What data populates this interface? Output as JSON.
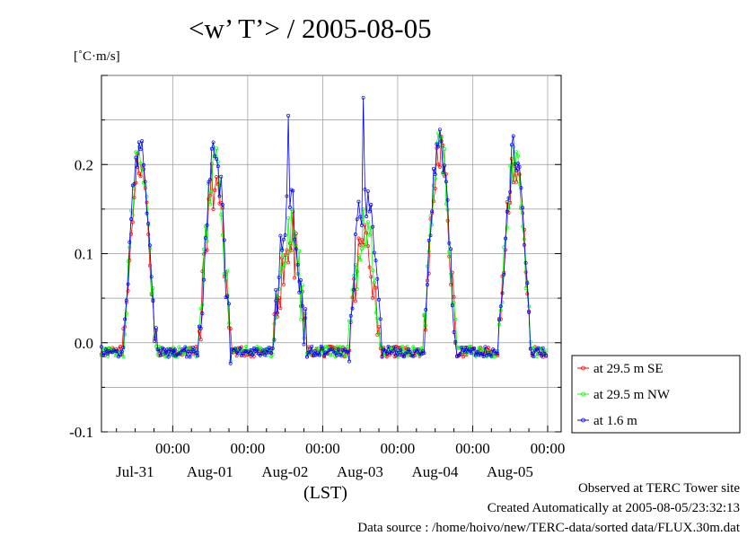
{
  "chart_data": {
    "type": "line",
    "title": "<w’ T’> / 2005-08-05",
    "ylabel": "[˚C·m/s]",
    "xlabel": "(LST)",
    "ylim": [
      -0.1,
      0.3
    ],
    "xlim": [
      -0.95,
      5.18
    ],
    "yticks": [
      "0.2",
      "0.1",
      "0.0",
      "-0.1"
    ],
    "xticks": [
      {
        "time": "00:00",
        "date": "Jul-31"
      },
      {
        "time": "00:00",
        "date": "Aug-01"
      },
      {
        "time": "00:00",
        "date": "Aug-02"
      },
      {
        "time": "00:00",
        "date": "Aug-03"
      },
      {
        "time": "00:00",
        "date": "Aug-04"
      },
      {
        "time": "00:00",
        "date": "Aug-05"
      }
    ],
    "grid": true,
    "legend_position": "right",
    "series": [
      {
        "name": "at 29.5 m SE",
        "color": "#ff0000",
        "days": [
          {
            "start": -0.95,
            "amp": 0.205,
            "peak": 0.19,
            "noise": 0.6
          },
          {
            "start": 0.0,
            "amp": 0.19,
            "peak": 0.15,
            "noise": 1.0
          },
          {
            "start": 1.0,
            "amp": 0.12,
            "peak": 0.09,
            "noise": 1.2
          },
          {
            "start": 2.0,
            "amp": 0.12,
            "peak": 0.11,
            "noise": 1.0
          },
          {
            "start": 3.0,
            "amp": 0.215,
            "peak": 0.2,
            "noise": 0.8
          },
          {
            "start": 4.0,
            "amp": 0.2,
            "peak": 0.18,
            "noise": 0.7
          }
        ]
      },
      {
        "name": "at 29.5 m NW",
        "color": "#00ff00",
        "days": [
          {
            "start": -0.95,
            "amp": 0.215,
            "peak": 0.22,
            "noise": 0.6
          },
          {
            "start": 0.0,
            "amp": 0.195,
            "peak": 0.22,
            "noise": 1.0
          },
          {
            "start": 1.0,
            "amp": 0.13,
            "peak": 0.14,
            "noise": 1.2
          },
          {
            "start": 2.0,
            "amp": 0.13,
            "peak": 0.15,
            "noise": 1.0
          },
          {
            "start": 3.0,
            "amp": 0.225,
            "peak": 0.235,
            "noise": 0.8
          },
          {
            "start": 4.0,
            "amp": 0.205,
            "peak": 0.22,
            "noise": 0.7
          }
        ]
      },
      {
        "name": "at 1.6 m",
        "color": "#0000ff",
        "days": [
          {
            "start": -0.95,
            "amp": 0.22,
            "peak": 0.225,
            "noise": 0.6
          },
          {
            "start": 0.0,
            "amp": 0.205,
            "peak": 0.225,
            "noise": 1.0
          },
          {
            "start": 1.0,
            "amp": 0.15,
            "peak": 0.255,
            "noise": 1.2
          },
          {
            "start": 2.0,
            "amp": 0.17,
            "peak": 0.275,
            "noise": 1.0
          },
          {
            "start": 3.0,
            "amp": 0.22,
            "peak": 0.22,
            "noise": 0.8
          },
          {
            "start": 4.0,
            "amp": 0.215,
            "peak": 0.232,
            "noise": 0.7
          }
        ]
      }
    ]
  },
  "footer": {
    "observed": "Observed at TERC Tower site",
    "created": "Created Automatically at 2005-08-05/23:32:13",
    "source": "Data source : /home/hoivo/new/TERC-data/sorted  data/FLUX.30m.dat"
  }
}
